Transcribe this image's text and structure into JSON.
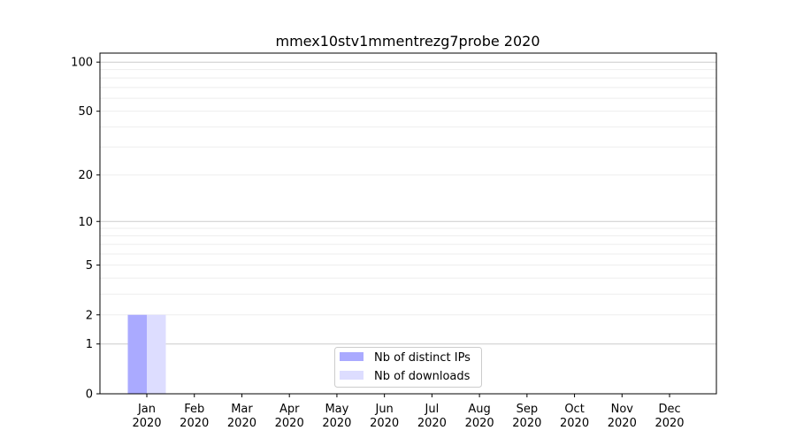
{
  "chart_data": {
    "type": "bar",
    "title": "mmex10stv1mmentrezg7probe 2020",
    "xlabel": "",
    "ylabel": "",
    "yscale": "log(1+y)",
    "ylim": [
      0,
      113
    ],
    "yticks": [
      0,
      1,
      2,
      5,
      10,
      20,
      50,
      100
    ],
    "grid": true,
    "legend_placement": "lower-center",
    "categories": [
      "Jan\n2020",
      "Feb\n2020",
      "Mar\n2020",
      "Apr\n2020",
      "May\n2020",
      "Jun\n2020",
      "Jul\n2020",
      "Aug\n2020",
      "Sep\n2020",
      "Oct\n2020",
      "Nov\n2020",
      "Dec\n2020"
    ],
    "series": [
      {
        "name": "Nb of distinct IPs",
        "color": "#aaaaff",
        "values": [
          2,
          0,
          0,
          0,
          0,
          0,
          0,
          0,
          0,
          0,
          0,
          0
        ]
      },
      {
        "name": "Nb of downloads",
        "color": "#ddddff",
        "values": [
          2,
          0,
          0,
          0,
          0,
          0,
          0,
          0,
          0,
          0,
          0,
          0
        ]
      }
    ]
  }
}
